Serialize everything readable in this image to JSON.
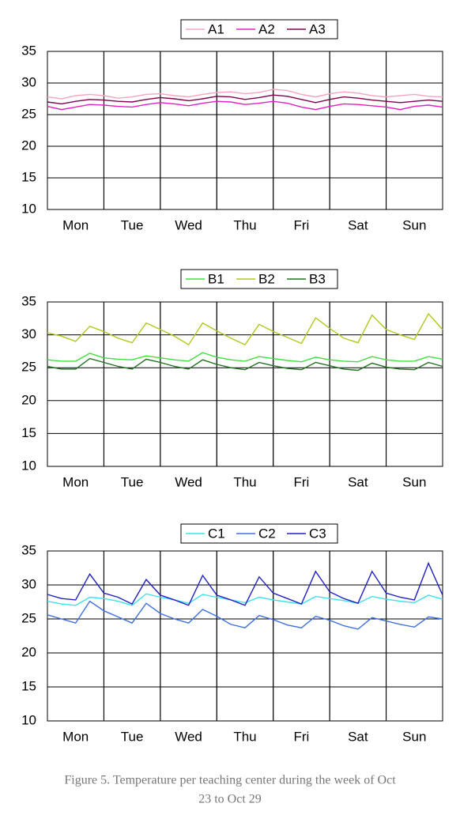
{
  "chart_data": [
    {
      "type": "line",
      "x": [
        0,
        0.25,
        0.5,
        0.75,
        1,
        1.25,
        1.5,
        1.75,
        2,
        2.25,
        2.5,
        2.75,
        3,
        3.25,
        3.5,
        3.75,
        4,
        4.25,
        4.5,
        4.75,
        5,
        5.25,
        5.5,
        5.75,
        6,
        6.25,
        6.5,
        6.75,
        7
      ],
      "xlim": [
        0,
        7
      ],
      "xticks": [
        {
          "value": 0.5,
          "label": "Mon"
        },
        {
          "value": 1.5,
          "label": "Tue"
        },
        {
          "value": 2.5,
          "label": "Wed"
        },
        {
          "value": 3.5,
          "label": "Thu"
        },
        {
          "value": 4.5,
          "label": "Fri"
        },
        {
          "value": 5.5,
          "label": "Sat"
        },
        {
          "value": 6.5,
          "label": "Sun"
        }
      ],
      "ylim": [
        10,
        35
      ],
      "yticks": [
        10,
        15,
        20,
        25,
        30,
        35
      ],
      "grid": true,
      "legend": "top",
      "series": [
        {
          "name": "A1",
          "color": "#f4a6c0",
          "values": [
            27.8,
            27.5,
            28,
            28.2,
            28,
            27.6,
            27.8,
            28.2,
            28.3,
            28,
            27.8,
            28.2,
            28.5,
            28.6,
            28.3,
            28.5,
            29,
            28.8,
            28.2,
            27.8,
            28.3,
            28.6,
            28.4,
            28,
            27.8,
            28,
            28.2,
            27.9,
            27.8
          ]
        },
        {
          "name": "A2",
          "color": "#e020c8",
          "values": [
            26.3,
            25.8,
            26.2,
            26.6,
            26.5,
            26.3,
            26.2,
            26.6,
            26.9,
            26.7,
            26.4,
            26.8,
            27.1,
            27,
            26.6,
            26.8,
            27.1,
            26.8,
            26.2,
            25.8,
            26.3,
            26.7,
            26.6,
            26.4,
            26.2,
            25.8,
            26.3,
            26.5,
            26.2
          ]
        },
        {
          "name": "A3",
          "color": "#800050",
          "values": [
            27,
            26.7,
            27.1,
            27.4,
            27.3,
            27.1,
            27,
            27.4,
            27.7,
            27.5,
            27.2,
            27.5,
            27.9,
            27.8,
            27.4,
            27.7,
            28.1,
            27.9,
            27.4,
            26.9,
            27.4,
            27.8,
            27.6,
            27.3,
            27.1,
            26.9,
            27.1,
            27.3,
            27.1
          ]
        }
      ]
    },
    {
      "type": "line",
      "x": [
        0,
        0.25,
        0.5,
        0.75,
        1,
        1.25,
        1.5,
        1.75,
        2,
        2.25,
        2.5,
        2.75,
        3,
        3.25,
        3.5,
        3.75,
        4,
        4.25,
        4.5,
        4.75,
        5,
        5.25,
        5.5,
        5.75,
        6,
        6.25,
        6.5,
        6.75,
        7
      ],
      "xlim": [
        0,
        7
      ],
      "xticks": [
        {
          "value": 0.5,
          "label": "Mon"
        },
        {
          "value": 1.5,
          "label": "Tue"
        },
        {
          "value": 2.5,
          "label": "Wed"
        },
        {
          "value": 3.5,
          "label": "Thu"
        },
        {
          "value": 4.5,
          "label": "Fri"
        },
        {
          "value": 5.5,
          "label": "Sat"
        },
        {
          "value": 6.5,
          "label": "Sun"
        }
      ],
      "ylim": [
        10,
        35
      ],
      "yticks": [
        10,
        15,
        20,
        25,
        30,
        35
      ],
      "grid": true,
      "legend": "top",
      "series": [
        {
          "name": "B1",
          "color": "#40e040",
          "values": [
            26.2,
            26,
            26,
            27.2,
            26.5,
            26.3,
            26.2,
            26.8,
            26.5,
            26.2,
            26,
            27.3,
            26.6,
            26.2,
            26,
            26.7,
            26.4,
            26.1,
            25.9,
            26.6,
            26.2,
            26,
            25.9,
            26.7,
            26.2,
            26,
            26,
            26.7,
            26.3
          ]
        },
        {
          "name": "B2",
          "color": "#b0c820",
          "values": [
            30.3,
            29.8,
            29,
            31.3,
            30.5,
            29.5,
            28.8,
            31.8,
            30.8,
            29.8,
            28.5,
            31.8,
            30.6,
            29.5,
            28.5,
            31.6,
            30.5,
            29.6,
            28.7,
            32.6,
            31,
            29.5,
            28.8,
            33,
            30.8,
            30,
            29.3,
            33.2,
            30.8
          ]
        },
        {
          "name": "B3",
          "color": "#207020",
          "values": [
            25.2,
            24.8,
            24.8,
            26.4,
            25.8,
            25.2,
            24.8,
            26.3,
            25.8,
            25.2,
            24.8,
            26.2,
            25.5,
            25,
            24.7,
            25.8,
            25.3,
            24.9,
            24.7,
            25.8,
            25.3,
            24.8,
            24.6,
            25.7,
            25.1,
            24.8,
            24.7,
            25.8,
            25.2
          ]
        }
      ]
    },
    {
      "type": "line",
      "x": [
        0,
        0.25,
        0.5,
        0.75,
        1,
        1.25,
        1.5,
        1.75,
        2,
        2.25,
        2.5,
        2.75,
        3,
        3.25,
        3.5,
        3.75,
        4,
        4.25,
        4.5,
        4.75,
        5,
        5.25,
        5.5,
        5.75,
        6,
        6.25,
        6.5,
        6.75,
        7
      ],
      "xlim": [
        0,
        7
      ],
      "xticks": [
        {
          "value": 0.5,
          "label": "Mon"
        },
        {
          "value": 1.5,
          "label": "Tue"
        },
        {
          "value": 2.5,
          "label": "Wed"
        },
        {
          "value": 3.5,
          "label": "Thu"
        },
        {
          "value": 4.5,
          "label": "Fri"
        },
        {
          "value": 5.5,
          "label": "Sat"
        },
        {
          "value": 6.5,
          "label": "Sun"
        }
      ],
      "ylim": [
        10,
        35
      ],
      "yticks": [
        10,
        15,
        20,
        25,
        30,
        35
      ],
      "grid": true,
      "legend": "top",
      "series": [
        {
          "name": "C1",
          "color": "#40e0f0",
          "values": [
            27.6,
            27.2,
            27,
            28.2,
            28,
            27.6,
            27,
            28.7,
            28.2,
            27.8,
            27.3,
            28.6,
            28.2,
            27.8,
            27.4,
            28.2,
            27.8,
            27.5,
            27.2,
            28.3,
            28,
            27.7,
            27.3,
            28.3,
            27.9,
            27.6,
            27.4,
            28.5,
            27.9
          ]
        },
        {
          "name": "C2",
          "color": "#4070e0",
          "values": [
            25.6,
            25,
            24.4,
            27.6,
            26.2,
            25.3,
            24.4,
            27.3,
            25.8,
            25,
            24.4,
            26.4,
            25.4,
            24.2,
            23.7,
            25.5,
            24.9,
            24.1,
            23.7,
            25.4,
            24.8,
            24,
            23.5,
            25.2,
            24.7,
            24.2,
            23.8,
            25.3,
            25
          ]
        },
        {
          "name": "C3",
          "color": "#2020c0",
          "values": [
            28.6,
            28,
            27.8,
            31.6,
            28.8,
            28.2,
            27.2,
            30.8,
            28.5,
            27.8,
            27,
            31.4,
            28.5,
            27.8,
            27,
            31.2,
            28.8,
            28,
            27.2,
            32,
            29,
            28,
            27.3,
            32,
            28.8,
            28.2,
            27.8,
            33.2,
            28.5
          ]
        }
      ]
    }
  ],
  "caption": [
    "Figure 5. Temperature per teaching center during the week of Oct",
    "23 to Oct 29"
  ]
}
